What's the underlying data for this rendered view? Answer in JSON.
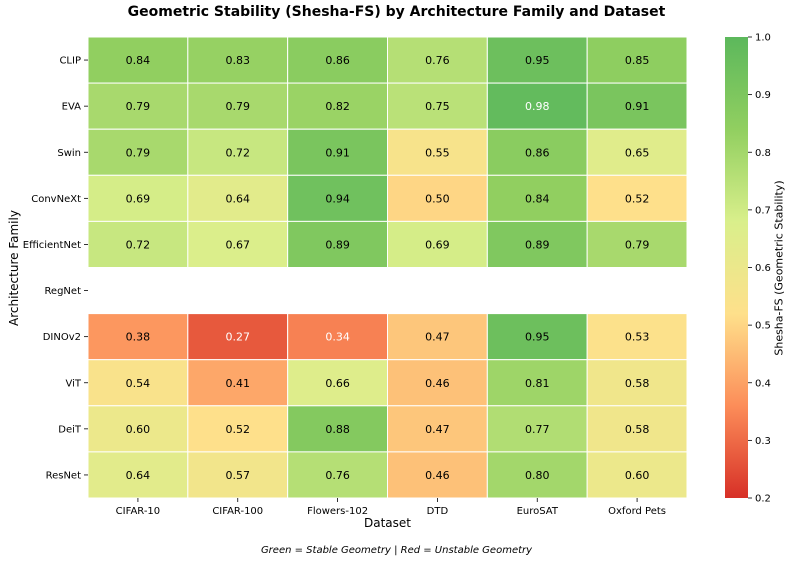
{
  "chart_data": {
    "type": "heatmap",
    "title": "Geometric Stability (Shesha-FS) by Architecture Family and Dataset",
    "xlabel": "Dataset",
    "ylabel": "Architecture Family",
    "colorbar_label": "Shesha-FS (Geometric Stability)",
    "footnote": "Green = Stable Geometry | Red = Unstable Geometry",
    "x_categories": [
      "CIFAR-10",
      "CIFAR-100",
      "Flowers-102",
      "DTD",
      "EuroSAT",
      "Oxford Pets"
    ],
    "y_categories": [
      "CLIP",
      "EVA",
      "Swin",
      "ConvNeXt",
      "EfficientNet",
      "RegNet",
      "DINOv2",
      "ViT",
      "DeiT",
      "ResNet"
    ],
    "values": [
      [
        0.84,
        0.83,
        0.86,
        0.76,
        0.95,
        0.85
      ],
      [
        0.79,
        0.79,
        0.82,
        0.75,
        0.98,
        0.91
      ],
      [
        0.79,
        0.72,
        0.91,
        0.55,
        0.86,
        0.65
      ],
      [
        0.69,
        0.64,
        0.94,
        0.5,
        0.84,
        0.52
      ],
      [
        0.72,
        0.67,
        0.89,
        0.69,
        0.89,
        0.79
      ],
      [
        null,
        null,
        null,
        null,
        null,
        null
      ],
      [
        0.38,
        0.27,
        0.34,
        0.47,
        0.95,
        0.53
      ],
      [
        0.54,
        0.41,
        0.66,
        0.46,
        0.81,
        0.58
      ],
      [
        0.6,
        0.52,
        0.88,
        0.47,
        0.77,
        0.58
      ],
      [
        0.64,
        0.57,
        0.76,
        0.46,
        0.8,
        0.6
      ]
    ],
    "colorbar_range": [
      0.2,
      1.0
    ],
    "colorbar_ticks": [
      "0.2",
      "0.3",
      "0.4",
      "0.5",
      "0.6",
      "0.7",
      "0.8",
      "0.9",
      "1.0"
    ],
    "colormap": [
      "#d73027",
      "#fc8d59",
      "#fee08b",
      "#d9ef8b",
      "#91cf60",
      "#5cb85c"
    ],
    "grid": false
  }
}
